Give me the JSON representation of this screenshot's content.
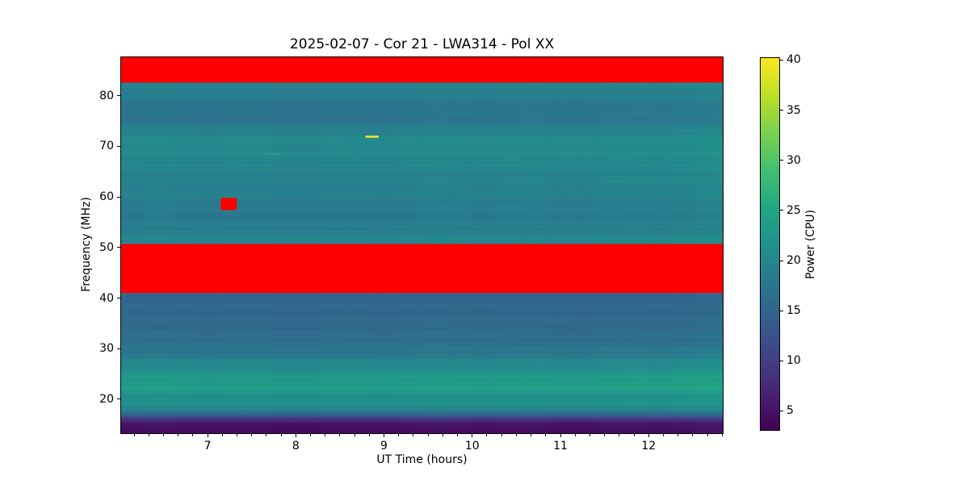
{
  "title": "2025-02-07 - Cor 21 - LWA314 - Pol XX",
  "plot": {
    "xlabel": "UT Time (hours)",
    "ylabel": "Frequency (MHz)",
    "x_ticks": [
      7,
      8,
      9,
      10,
      11,
      12
    ],
    "y_ticks": [
      20,
      30,
      40,
      50,
      60,
      70,
      80
    ],
    "x_minor_step_hours": 0.16667
  },
  "colorbar": {
    "label": "Power (CPU)",
    "ticks": [
      5,
      10,
      15,
      20,
      25,
      30,
      35,
      40
    ],
    "vmin": 3.1,
    "vmax": 40.2
  },
  "chart_data": {
    "type": "heatmap",
    "title": "2025-02-07 - Cor 21 - LWA314 - Pol XX",
    "xlabel": "UT Time (hours)",
    "ylabel": "Frequency (MHz)",
    "colorbar_label": "Power (CPU)",
    "colormap": "viridis",
    "xlim": [
      6.02,
      12.84
    ],
    "ylim": [
      13.3,
      87.6
    ],
    "color_range": [
      3.1,
      40.2
    ],
    "flagged_color": "#ff0000",
    "flagged_bands": [
      {
        "f0": 82.6,
        "f1": 87.6
      },
      {
        "f0": 41.0,
        "f1": 50.7
      }
    ],
    "background_profile": [
      [
        13.3,
        3.8
      ],
      [
        14.2,
        4.2
      ],
      [
        15.0,
        5.2
      ],
      [
        15.8,
        7.5
      ],
      [
        16.5,
        11.0
      ],
      [
        17.2,
        16.0
      ],
      [
        18.0,
        20.0
      ],
      [
        19.0,
        21.0
      ],
      [
        20.5,
        21.3
      ],
      [
        22.0,
        23.2
      ],
      [
        23.0,
        23.6
      ],
      [
        24.5,
        22.5
      ],
      [
        26.0,
        21.0
      ],
      [
        27.5,
        19.5
      ],
      [
        29.0,
        17.8
      ],
      [
        31.0,
        16.8
      ],
      [
        33.0,
        16.2
      ],
      [
        35.5,
        15.8
      ],
      [
        38.0,
        15.4
      ],
      [
        41.0,
        15.2
      ],
      [
        50.7,
        20.3
      ],
      [
        52.0,
        19.6
      ],
      [
        54.0,
        18.6
      ],
      [
        56.5,
        18.1
      ],
      [
        58.5,
        18.4
      ],
      [
        60.5,
        19.0
      ],
      [
        63.0,
        19.3
      ],
      [
        65.5,
        19.6
      ],
      [
        67.5,
        20.1
      ],
      [
        69.5,
        20.3
      ],
      [
        71.5,
        20.2
      ],
      [
        73.0,
        19.4
      ],
      [
        74.5,
        17.6
      ],
      [
        76.5,
        17.2
      ],
      [
        78.5,
        17.5
      ],
      [
        80.0,
        18.6
      ],
      [
        81.5,
        19.1
      ],
      [
        82.6,
        19.0
      ],
      [
        87.6,
        19.0
      ]
    ],
    "features": [
      {
        "name": "flagged-blob",
        "t0": 7.15,
        "t1": 7.33,
        "f0": 57.4,
        "f1": 59.8,
        "color": "#ff0000"
      },
      {
        "name": "bright-burst-dash",
        "t0": 8.79,
        "t1": 8.94,
        "f0": 71.7,
        "f1": 72.1,
        "power": 40.0
      },
      {
        "name": "faint-burst-dash",
        "t0": 7.64,
        "t1": 7.81,
        "f0": 68.4,
        "f1": 68.7,
        "power": 24.5
      }
    ]
  }
}
